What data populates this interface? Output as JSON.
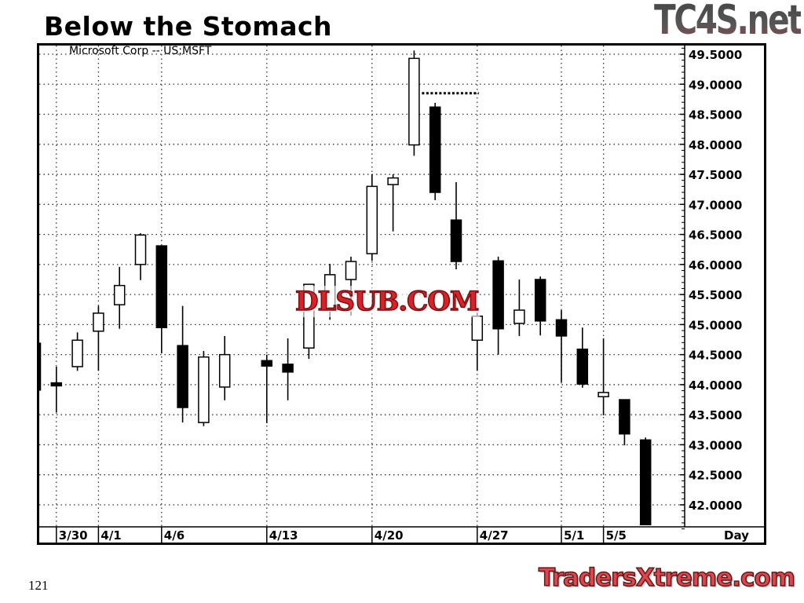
{
  "slide": {
    "title": "Below the Stomach",
    "page_number": "121",
    "logo_top": "TC4S.net",
    "logo_bottom": "TradersXtreme.com",
    "watermark": "DLSUB.COM"
  },
  "chart_data": {
    "type": "candlestick",
    "title": "Microsoft Corp -- US;MSFT",
    "xlabel": "Day",
    "ylabel": "",
    "ylim": [
      41.6,
      49.65
    ],
    "grid": true,
    "y_axis_side": "right",
    "yticks": [
      "49.5000",
      "49.0000",
      "48.5000",
      "48.0000",
      "47.5000",
      "47.0000",
      "46.5000",
      "46.0000",
      "45.5000",
      "45.0000",
      "44.5000",
      "44.0000",
      "43.5000",
      "43.0000",
      "42.5000",
      "42.0000"
    ],
    "xticks": [
      {
        "label": "3/30",
        "slot": 1
      },
      {
        "label": "4/1",
        "slot": 3
      },
      {
        "label": "4/6",
        "slot": 6
      },
      {
        "label": "4/13",
        "slot": 11
      },
      {
        "label": "4/20",
        "slot": 16
      },
      {
        "label": "4/27",
        "slot": 21
      },
      {
        "label": "5/1",
        "slot": 25
      },
      {
        "label": "5/5",
        "slot": 27
      }
    ],
    "colors": {
      "up": "#ffffff",
      "down": "#000000",
      "outline": "#000000"
    },
    "candles": [
      {
        "o": 44.69,
        "h": 44.75,
        "l": 43.9,
        "c": 43.91
      },
      {
        "o": 44.03,
        "h": 44.3,
        "l": 43.54,
        "c": 43.98
      },
      {
        "o": 44.3,
        "h": 44.87,
        "l": 44.23,
        "c": 44.74
      },
      {
        "o": 44.89,
        "h": 45.31,
        "l": 44.23,
        "c": 45.19
      },
      {
        "o": 45.33,
        "h": 45.96,
        "l": 44.93,
        "c": 45.65
      },
      {
        "o": 46.0,
        "h": 46.52,
        "l": 45.74,
        "c": 46.49
      },
      {
        "o": 46.31,
        "h": 46.31,
        "l": 44.52,
        "c": 44.95
      },
      {
        "o": 44.65,
        "h": 45.31,
        "l": 43.37,
        "c": 43.62
      },
      {
        "o": 43.37,
        "h": 44.56,
        "l": 43.31,
        "c": 44.46
      },
      {
        "o": 43.96,
        "h": 44.81,
        "l": 43.74,
        "c": 44.5
      },
      null,
      {
        "o": 44.4,
        "h": 44.5,
        "l": 43.36,
        "c": 44.31
      },
      {
        "o": 44.34,
        "h": 44.77,
        "l": 43.74,
        "c": 44.21
      },
      {
        "o": 44.61,
        "h": 45.67,
        "l": 44.43,
        "c": 45.67
      },
      {
        "o": 45.28,
        "h": 46.01,
        "l": 45.08,
        "c": 45.83
      },
      {
        "o": 45.75,
        "h": 46.13,
        "l": 45.15,
        "c": 46.05
      },
      {
        "o": 46.18,
        "h": 47.5,
        "l": 46.06,
        "c": 47.3
      },
      {
        "o": 47.33,
        "h": 47.5,
        "l": 46.55,
        "c": 47.44
      },
      {
        "o": 47.99,
        "h": 49.56,
        "l": 47.81,
        "c": 49.43
      },
      {
        "o": 48.62,
        "h": 48.69,
        "l": 47.07,
        "c": 47.2
      },
      {
        "o": 46.74,
        "h": 47.37,
        "l": 45.92,
        "c": 46.05
      },
      {
        "o": 44.74,
        "h": 45.2,
        "l": 44.23,
        "c": 45.14
      },
      {
        "o": 46.06,
        "h": 46.13,
        "l": 44.5,
        "c": 44.93
      },
      {
        "o": 45.02,
        "h": 45.75,
        "l": 44.81,
        "c": 45.24
      },
      {
        "o": 45.75,
        "h": 45.8,
        "l": 44.82,
        "c": 45.06
      },
      {
        "o": 45.08,
        "h": 45.24,
        "l": 44.04,
        "c": 44.81
      },
      {
        "o": 44.59,
        "h": 44.95,
        "l": 43.95,
        "c": 44.01
      },
      {
        "o": 43.8,
        "h": 44.77,
        "l": 43.49,
        "c": 43.87
      },
      {
        "o": 43.75,
        "h": 43.75,
        "l": 42.99,
        "c": 43.18
      },
      {
        "o": 43.08,
        "h": 43.12,
        "l": 41.67,
        "c": 41.67
      }
    ],
    "annotations": [
      {
        "type": "dotted-line",
        "y": 48.85,
        "from_slot": 18,
        "to_slot": 21
      }
    ]
  }
}
